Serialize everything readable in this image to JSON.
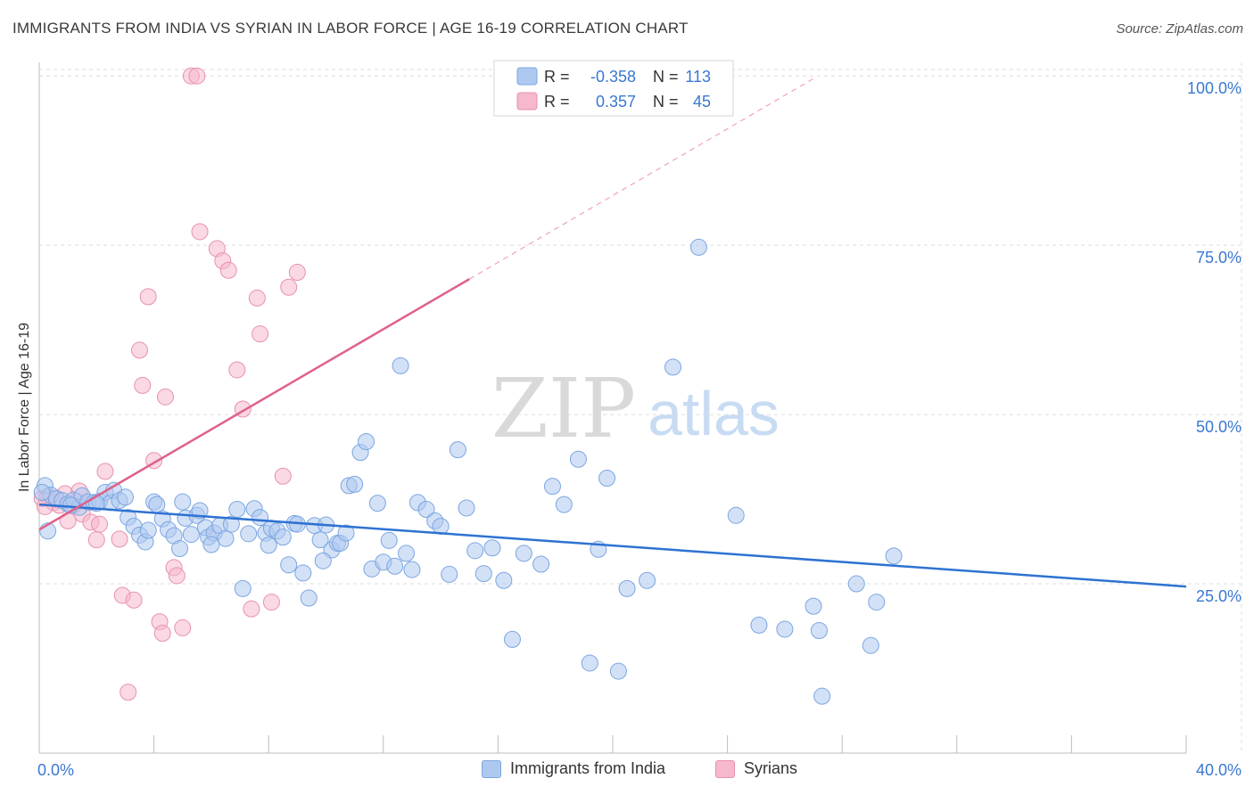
{
  "header": {
    "title": "IMMIGRANTS FROM INDIA VS SYRIAN IN LABOR FORCE | AGE 16-19 CORRELATION CHART",
    "source": "Source: ZipAtlas.com"
  },
  "colors": {
    "blue_fill": "#aec9f0",
    "blue_stroke": "#7ba6e0",
    "blue_line": "#2e72d2",
    "pink_fill": "#f5b8cd",
    "pink_stroke": "#e891b0",
    "pink_line": "#e0608a",
    "axis_text": "#3a78d0",
    "grid": "#dcdcdc"
  },
  "watermark": {
    "zip": "ZIP",
    "atlas": "atlas"
  },
  "legend": {
    "r_label": "R =",
    "n_label": "N =",
    "rows": [
      {
        "r": "-0.358",
        "n": "113",
        "series": "blue"
      },
      {
        "r": "0.357",
        "n": "45",
        "series": "pink"
      }
    ]
  },
  "bottom_legend": [
    {
      "label": "Immigrants from India",
      "series": "blue"
    },
    {
      "label": "Syrians",
      "series": "pink"
    }
  ],
  "chart_data": {
    "type": "scatter",
    "title": "IMMIGRANTS FROM INDIA VS SYRIAN IN LABOR FORCE | AGE 16-19 CORRELATION CHART",
    "xlabel": "",
    "ylabel": "In Labor Force | Age 16-19",
    "xlim": [
      0,
      40
    ],
    "ylim": [
      0,
      102
    ],
    "x_tick_labels": [
      {
        "value": 0,
        "label": "0.0%"
      },
      {
        "value": 40,
        "label": "40.0%"
      }
    ],
    "y_tick_labels": [
      {
        "value": 25,
        "label": "25.0%"
      },
      {
        "value": 50,
        "label": "50.0%"
      },
      {
        "value": 75,
        "label": "75.0%"
      },
      {
        "value": 100,
        "label": "100.0%"
      }
    ],
    "series": [
      {
        "name": "Immigrants from India",
        "color": "blue",
        "trendline": {
          "x": [
            0,
            40
          ],
          "y": [
            36.7,
            24.6
          ]
        },
        "points": [
          [
            0.2,
            39.5
          ],
          [
            0.4,
            38.1
          ],
          [
            0.6,
            37.6
          ],
          [
            0.8,
            37.3
          ],
          [
            1.0,
            36.8
          ],
          [
            1.2,
            37.4
          ],
          [
            1.4,
            36.3
          ],
          [
            1.5,
            38.0
          ],
          [
            1.7,
            37.1
          ],
          [
            1.9,
            37.0
          ],
          [
            2.1,
            37.2
          ],
          [
            2.3,
            38.5
          ],
          [
            2.5,
            37.0
          ],
          [
            2.6,
            38.8
          ],
          [
            2.8,
            37.3
          ],
          [
            3.0,
            37.8
          ],
          [
            3.1,
            34.8
          ],
          [
            3.3,
            33.5
          ],
          [
            3.5,
            32.2
          ],
          [
            3.7,
            31.2
          ],
          [
            3.8,
            32.9
          ],
          [
            4.0,
            37.1
          ],
          [
            4.1,
            36.7
          ],
          [
            4.3,
            34.6
          ],
          [
            4.5,
            33.0
          ],
          [
            4.7,
            32.1
          ],
          [
            4.9,
            30.2
          ],
          [
            5.0,
            37.1
          ],
          [
            5.1,
            34.7
          ],
          [
            5.3,
            32.3
          ],
          [
            5.5,
            35.1
          ],
          [
            5.6,
            35.8
          ],
          [
            5.8,
            33.3
          ],
          [
            5.9,
            31.9
          ],
          [
            6.1,
            32.5
          ],
          [
            6.3,
            33.6
          ],
          [
            6.5,
            31.7
          ],
          [
            6.7,
            33.8
          ],
          [
            6.9,
            36.0
          ],
          [
            7.1,
            24.3
          ],
          [
            7.3,
            32.4
          ],
          [
            7.5,
            36.1
          ],
          [
            7.7,
            34.8
          ],
          [
            7.9,
            32.5
          ],
          [
            8.0,
            30.7
          ],
          [
            8.1,
            33.2
          ],
          [
            8.3,
            32.8
          ],
          [
            8.5,
            31.9
          ],
          [
            8.7,
            27.8
          ],
          [
            8.9,
            33.9
          ],
          [
            9.0,
            33.8
          ],
          [
            9.2,
            26.6
          ],
          [
            9.4,
            22.9
          ],
          [
            9.6,
            33.6
          ],
          [
            9.8,
            31.5
          ],
          [
            10.0,
            33.7
          ],
          [
            10.2,
            30.0
          ],
          [
            10.4,
            31.0
          ],
          [
            10.5,
            31.0
          ],
          [
            10.7,
            32.5
          ],
          [
            10.8,
            39.5
          ],
          [
            11.0,
            39.7
          ],
          [
            11.2,
            44.4
          ],
          [
            11.4,
            46.0
          ],
          [
            11.6,
            27.2
          ],
          [
            11.8,
            36.9
          ],
          [
            12.0,
            28.2
          ],
          [
            12.2,
            31.4
          ],
          [
            12.4,
            27.6
          ],
          [
            12.6,
            57.2
          ],
          [
            12.8,
            29.5
          ],
          [
            13.0,
            27.1
          ],
          [
            13.2,
            37.0
          ],
          [
            13.5,
            36.0
          ],
          [
            13.8,
            34.3
          ],
          [
            14.0,
            33.5
          ],
          [
            14.3,
            26.4
          ],
          [
            14.6,
            44.8
          ],
          [
            14.9,
            36.2
          ],
          [
            15.2,
            29.9
          ],
          [
            15.5,
            26.5
          ],
          [
            15.8,
            30.3
          ],
          [
            16.2,
            25.5
          ],
          [
            16.5,
            16.8
          ],
          [
            16.9,
            29.5
          ],
          [
            17.5,
            27.9
          ],
          [
            17.9,
            39.4
          ],
          [
            18.3,
            36.7
          ],
          [
            18.8,
            43.4
          ],
          [
            19.2,
            13.3
          ],
          [
            19.5,
            30.1
          ],
          [
            19.8,
            40.6
          ],
          [
            20.2,
            12.1
          ],
          [
            20.5,
            24.3
          ],
          [
            21.2,
            25.5
          ],
          [
            22.1,
            57.0
          ],
          [
            23.0,
            74.7
          ],
          [
            24.3,
            35.1
          ],
          [
            25.1,
            18.9
          ],
          [
            26.0,
            18.3
          ],
          [
            27.0,
            21.7
          ],
          [
            27.2,
            18.1
          ],
          [
            27.3,
            8.4
          ],
          [
            28.5,
            25.0
          ],
          [
            29.0,
            15.9
          ],
          [
            29.2,
            22.3
          ],
          [
            29.8,
            29.1
          ],
          [
            0.1,
            38.5
          ],
          [
            0.3,
            32.8
          ],
          [
            1.1,
            36.6
          ],
          [
            2.0,
            36.9
          ],
          [
            6.0,
            30.8
          ],
          [
            9.9,
            28.4
          ]
        ]
      },
      {
        "name": "Syrians",
        "color": "pink",
        "trendline": {
          "x": [
            0,
            15
          ],
          "y": [
            33.0,
            70.0
          ]
        },
        "trendline_extension": {
          "x": [
            15,
            27
          ],
          "y": [
            70.0,
            99.6
          ]
        },
        "points": [
          [
            0.1,
            37.6
          ],
          [
            0.3,
            37.9
          ],
          [
            0.5,
            37.0
          ],
          [
            0.7,
            36.6
          ],
          [
            0.9,
            38.3
          ],
          [
            1.0,
            34.3
          ],
          [
            1.2,
            36.6
          ],
          [
            1.4,
            38.7
          ],
          [
            1.5,
            35.3
          ],
          [
            1.8,
            34.1
          ],
          [
            2.0,
            31.5
          ],
          [
            2.1,
            33.8
          ],
          [
            2.3,
            41.6
          ],
          [
            2.8,
            31.6
          ],
          [
            2.9,
            23.3
          ],
          [
            3.1,
            9.0
          ],
          [
            3.3,
            22.6
          ],
          [
            3.5,
            59.5
          ],
          [
            3.6,
            54.3
          ],
          [
            3.8,
            67.4
          ],
          [
            4.0,
            43.2
          ],
          [
            4.2,
            19.4
          ],
          [
            4.3,
            17.7
          ],
          [
            4.4,
            52.6
          ],
          [
            4.7,
            27.4
          ],
          [
            4.8,
            26.2
          ],
          [
            5.3,
            100.0
          ],
          [
            5.5,
            100.0
          ],
          [
            5.6,
            77.0
          ],
          [
            6.2,
            74.5
          ],
          [
            6.4,
            72.7
          ],
          [
            6.6,
            71.3
          ],
          [
            6.9,
            56.6
          ],
          [
            7.1,
            50.8
          ],
          [
            7.4,
            21.3
          ],
          [
            7.6,
            67.2
          ],
          [
            7.7,
            61.9
          ],
          [
            8.1,
            22.3
          ],
          [
            8.5,
            40.9
          ],
          [
            8.7,
            68.8
          ],
          [
            9.0,
            71.0
          ],
          [
            0.2,
            36.4
          ],
          [
            0.6,
            37.5
          ],
          [
            1.3,
            37.2
          ],
          [
            5.0,
            18.5
          ]
        ]
      }
    ]
  }
}
